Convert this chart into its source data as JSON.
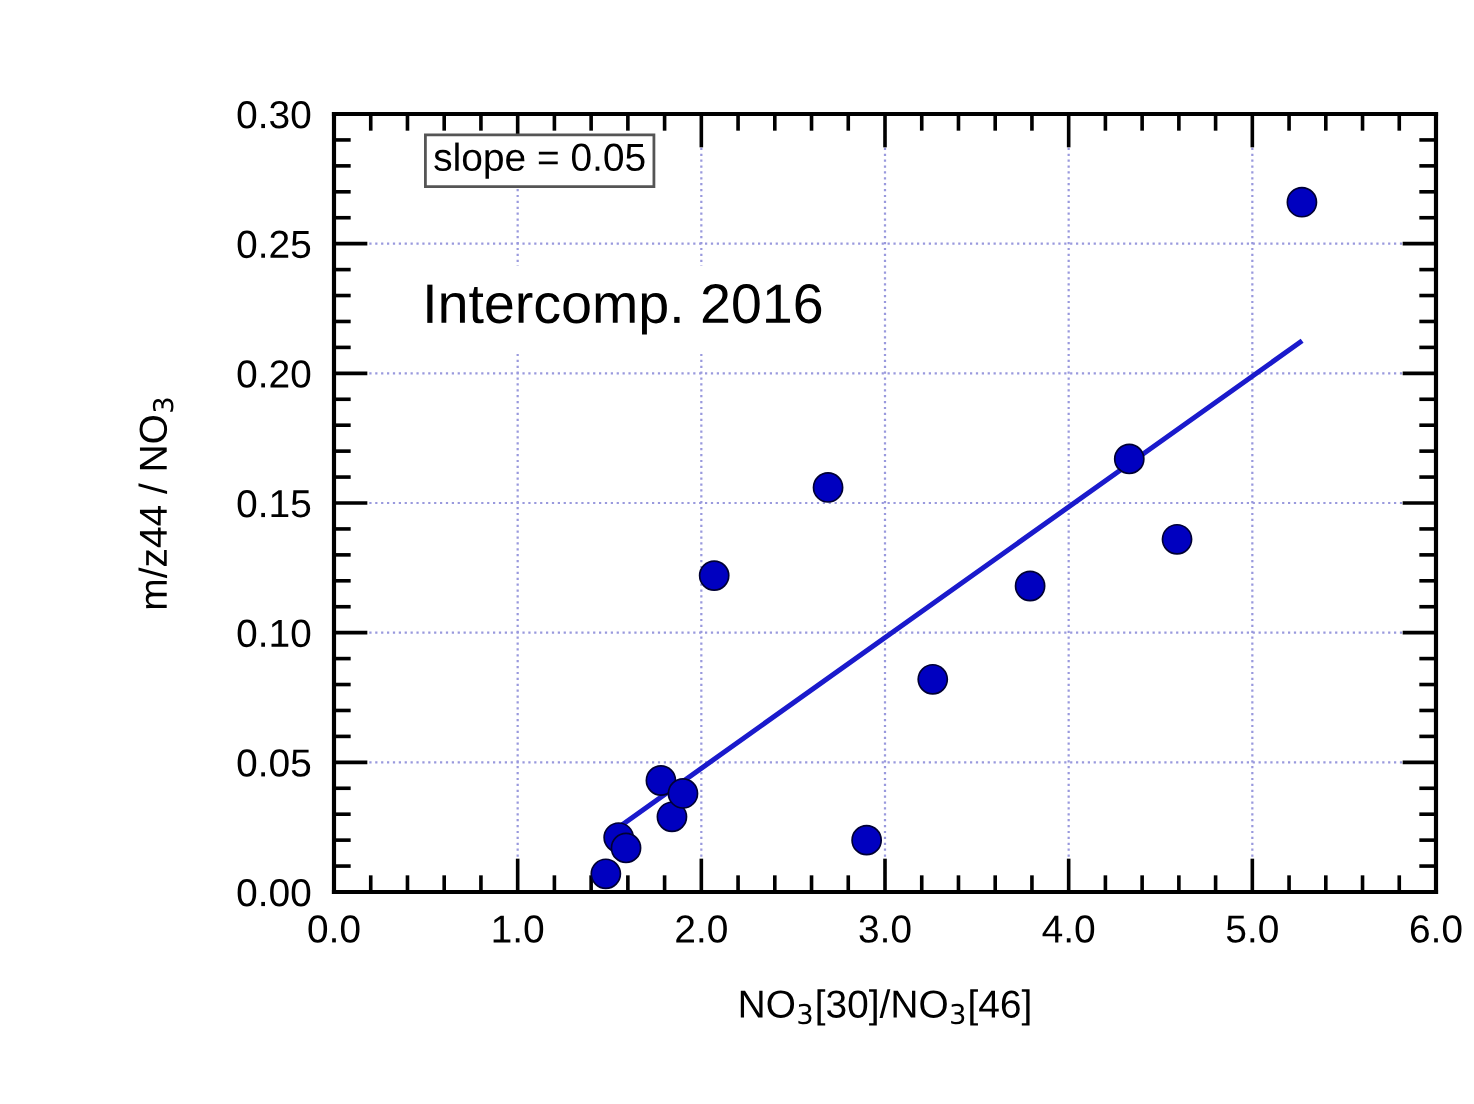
{
  "chart_data": {
    "type": "scatter",
    "xlabel": "NO$_{3}$[30]/NO$_{3}$[46]",
    "ylabel": "m/z44 / NO$_{3}$",
    "annotations": [
      "slope = 0.05",
      "Intercomp. 2016"
    ],
    "series": [
      {
        "color": "#0000c0",
        "marker": "circle",
        "x": [
          1.48,
          1.55,
          1.59,
          1.78,
          1.84,
          1.9,
          2.07,
          2.69,
          2.9,
          3.26,
          3.79,
          4.33,
          4.59,
          5.27
        ],
        "values": [
          0.007,
          0.021,
          0.017,
          0.043,
          0.029,
          0.038,
          0.122,
          0.156,
          0.02,
          0.082,
          0.118,
          0.167,
          0.136,
          0.266
        ]
      },
      {
        "type": "line",
        "color": "#1a1acc",
        "line_style": "solid",
        "x": [
          1.55,
          5.26
        ],
        "values": [
          0.025,
          0.212
        ]
      }
    ],
    "xlim": [
      0,
      6
    ],
    "ylim": [
      0,
      0.3
    ],
    "xticks": [
      {
        "value": 0,
        "label": "0.0"
      },
      {
        "value": 1,
        "label": "1.0"
      },
      {
        "value": 2,
        "label": "2.0"
      },
      {
        "value": 3,
        "label": "3.0"
      },
      {
        "value": 4,
        "label": "4.0"
      },
      {
        "value": 5,
        "label": "5.0"
      },
      {
        "value": 6,
        "label": "6.0"
      }
    ],
    "yticks": [
      {
        "value": 0,
        "label": "0.00"
      },
      {
        "value": 0.05,
        "label": "0.05"
      },
      {
        "value": 0.1,
        "label": "0.10"
      },
      {
        "value": 0.15,
        "label": "0.15"
      },
      {
        "value": 0.2,
        "label": "0.20"
      },
      {
        "value": 0.25,
        "label": "0.25"
      },
      {
        "value": 0.3,
        "label": "0.30"
      }
    ],
    "grid": true,
    "legend": false
  }
}
